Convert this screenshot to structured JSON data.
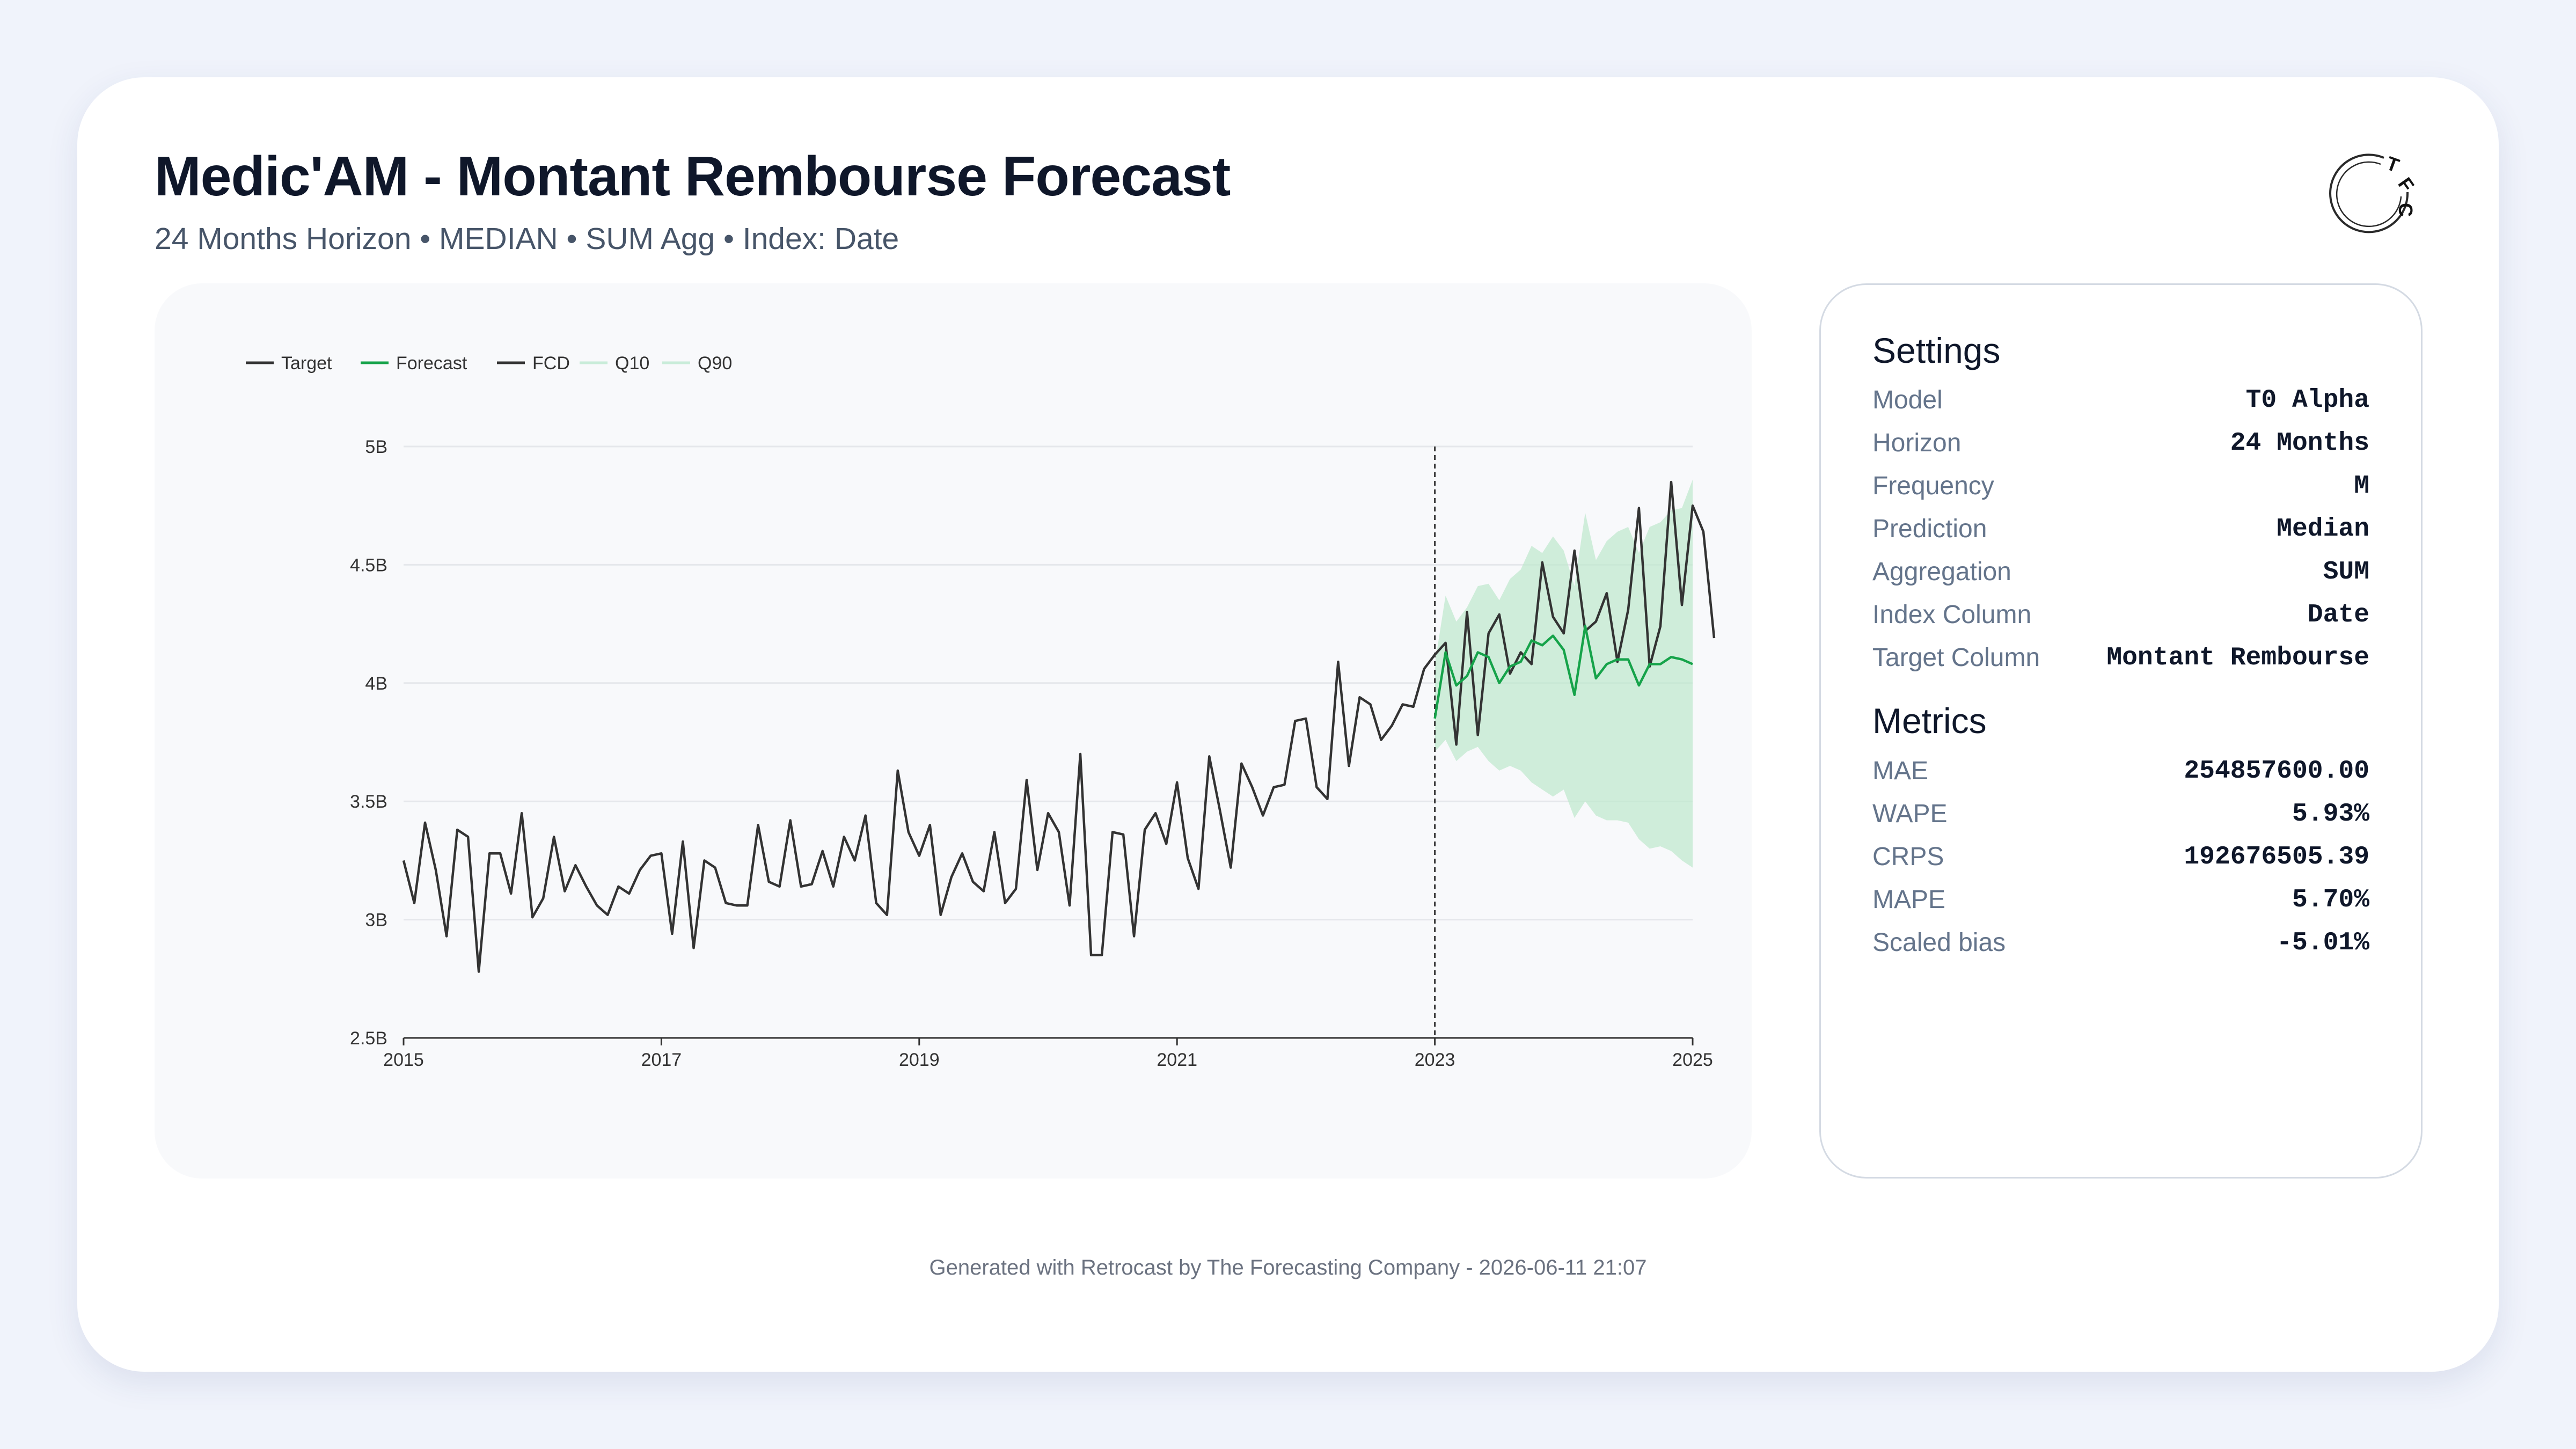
{
  "header": {
    "title": "Medic'AM - Montant Rembourse Forecast",
    "subtitle": "24 Months Horizon • MEDIAN • SUM Agg • Index: Date",
    "logo_text": "TFC"
  },
  "settings": {
    "title": "Settings",
    "rows": [
      {
        "key": "Model",
        "value": "T0 Alpha"
      },
      {
        "key": "Horizon",
        "value": "24 Months"
      },
      {
        "key": "Frequency",
        "value": "M"
      },
      {
        "key": "Prediction",
        "value": "Median"
      },
      {
        "key": "Aggregation",
        "value": "SUM"
      },
      {
        "key": "Index Column",
        "value": "Date"
      },
      {
        "key": "Target Column",
        "value": "Montant Rembourse"
      }
    ]
  },
  "metrics": {
    "title": "Metrics",
    "rows": [
      {
        "key": "MAE",
        "value": "254857600.00"
      },
      {
        "key": "WAPE",
        "value": "5.93%"
      },
      {
        "key": "CRPS",
        "value": "192676505.39"
      },
      {
        "key": "MAPE",
        "value": "5.70%"
      },
      {
        "key": "Scaled bias",
        "value": "-5.01%"
      }
    ]
  },
  "footer": "Generated with Retrocast by The Forecasting Company - 2026-06-11 21:07",
  "colors": {
    "target": "#333333",
    "forecast": "#16a34a",
    "band": "#bde8cc"
  },
  "chart_data": {
    "type": "line",
    "grid": "horizontal",
    "legend_position": "top-left",
    "legend": [
      "Target",
      "Forecast",
      "FCD",
      "Q10",
      "Q90"
    ],
    "y_ticks": [
      "2.5B",
      "3B",
      "3.5B",
      "4B",
      "4.5B",
      "5B"
    ],
    "x_ticks": [
      "2015",
      "2017",
      "2019",
      "2021",
      "2023",
      "2025"
    ],
    "xlim": [
      "2015-01",
      "2025-01"
    ],
    "ylim": [
      2.5,
      5.0
    ],
    "forecast_cutoff": "2023-01",
    "series": [
      {
        "name": "Target",
        "start": "2015-01",
        "frequency": "M",
        "values": [
          3.25,
          3.07,
          3.41,
          3.21,
          2.93,
          3.38,
          3.35,
          2.78,
          3.28,
          3.28,
          3.11,
          3.45,
          3.01,
          3.09,
          3.35,
          3.12,
          3.23,
          3.14,
          3.06,
          3.02,
          3.14,
          3.11,
          3.21,
          3.27,
          3.28,
          2.94,
          3.33,
          2.88,
          3.25,
          3.22,
          3.07,
          3.06,
          3.06,
          3.4,
          3.16,
          3.14,
          3.42,
          3.14,
          3.15,
          3.29,
          3.14,
          3.35,
          3.25,
          3.44,
          3.07,
          3.02,
          3.63,
          3.37,
          3.27,
          3.4,
          3.02,
          3.18,
          3.28,
          3.16,
          3.12,
          3.37,
          3.07,
          3.13,
          3.59,
          3.21,
          3.45,
          3.37,
          3.06,
          3.7,
          2.85,
          2.85,
          3.37,
          3.36,
          2.93,
          3.38,
          3.45,
          3.32,
          3.58,
          3.26,
          3.13,
          3.69,
          3.46,
          3.22,
          3.66,
          3.56,
          3.44,
          3.56,
          3.57,
          3.84,
          3.85,
          3.56,
          3.51,
          4.09,
          3.65,
          3.94,
          3.91,
          3.76,
          3.82,
          3.91,
          3.9,
          4.06,
          4.12,
          4.17,
          3.74,
          4.3,
          3.78,
          4.21,
          4.29,
          4.04,
          4.13,
          4.08,
          4.51,
          4.28,
          4.21,
          4.56,
          4.22,
          4.26,
          4.38,
          4.09,
          4.31,
          4.74,
          4.07,
          4.24,
          4.85,
          4.33,
          4.75,
          4.64,
          4.19
        ]
      },
      {
        "name": "Forecast",
        "start": "2023-01",
        "frequency": "M",
        "values": [
          3.85,
          4.13,
          3.99,
          4.03,
          4.13,
          4.11,
          4.0,
          4.07,
          4.09,
          4.18,
          4.16,
          4.2,
          4.14,
          3.95,
          4.24,
          4.02,
          4.08,
          4.1,
          4.1,
          3.99,
          4.08,
          4.08,
          4.11,
          4.1,
          4.08
        ]
      },
      {
        "name": "Q10",
        "start": "2023-01",
        "frequency": "M",
        "values": [
          3.71,
          3.76,
          3.67,
          3.71,
          3.73,
          3.67,
          3.63,
          3.65,
          3.63,
          3.58,
          3.55,
          3.52,
          3.55,
          3.43,
          3.5,
          3.44,
          3.42,
          3.42,
          3.41,
          3.34,
          3.3,
          3.31,
          3.29,
          3.25,
          3.22
        ]
      },
      {
        "name": "Q90",
        "start": "2023-01",
        "frequency": "M",
        "values": [
          4.08,
          4.37,
          4.26,
          4.32,
          4.41,
          4.42,
          4.35,
          4.44,
          4.48,
          4.58,
          4.55,
          4.62,
          4.56,
          4.41,
          4.72,
          4.52,
          4.6,
          4.64,
          4.66,
          4.55,
          4.66,
          4.68,
          4.73,
          4.74,
          4.86
        ]
      }
    ]
  }
}
